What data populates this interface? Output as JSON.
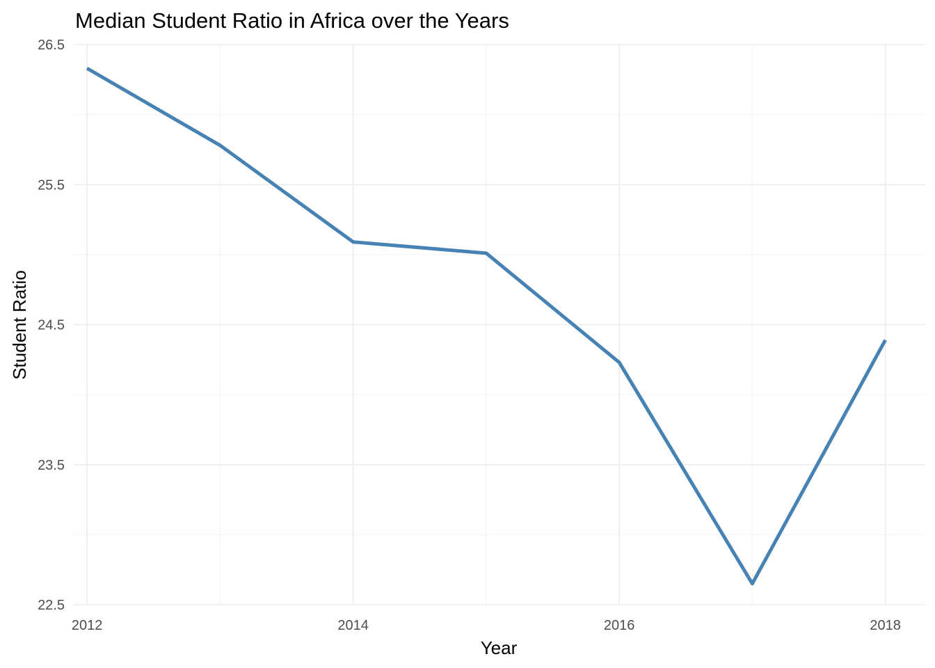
{
  "chart_data": {
    "type": "line",
    "title": "Median Student Ratio in Africa over the Years",
    "xlabel": "Year",
    "ylabel": "Student Ratio",
    "x": [
      2012,
      2013,
      2014,
      2015,
      2016,
      2017,
      2018
    ],
    "series": [
      {
        "values": [
          26.33,
          25.78,
          25.09,
          25.01,
          24.23,
          22.65,
          24.39
        ]
      }
    ],
    "xlim": [
      2011.9,
      2018.3
    ],
    "ylim": [
      22.5,
      26.5
    ],
    "x_ticks": [
      "2012",
      "2014",
      "2016",
      "2018"
    ],
    "y_ticks": [
      "22.5",
      "23.5",
      "24.5",
      "25.5",
      "26.5"
    ],
    "line_color": "#4682b4",
    "grid": true,
    "legend": "none"
  }
}
